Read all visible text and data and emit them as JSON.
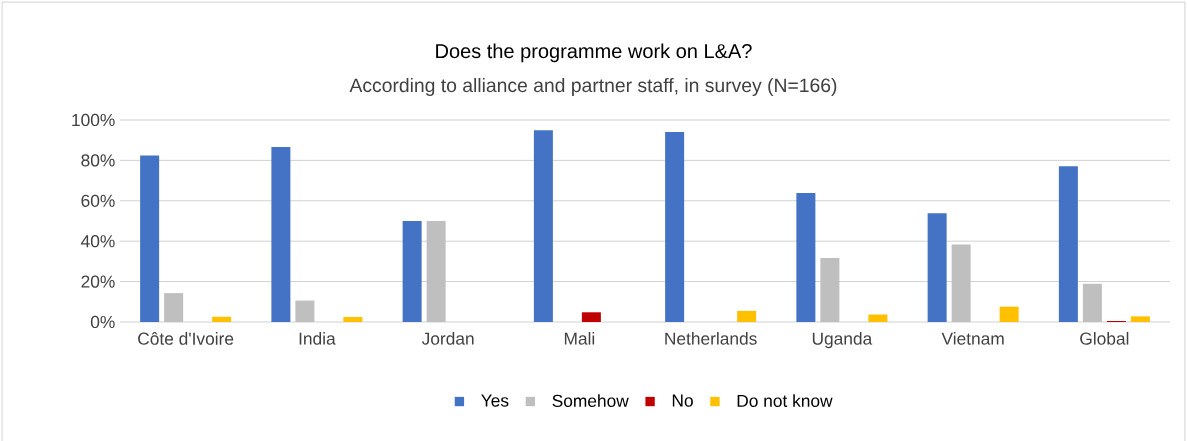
{
  "chart_data": {
    "type": "bar",
    "title": "Does the programme work on L&A?",
    "subtitle": "According to alliance and partner staff, in survey (N=166)",
    "categories": [
      "Côte d'Ivoire",
      "India",
      "Jordan",
      "Mali",
      "Netherlands",
      "Uganda",
      "Vietnam",
      "Global"
    ],
    "series": [
      {
        "name": "Yes",
        "color": "#4472c4",
        "values": [
          82.4,
          86.6,
          50,
          94.9,
          94.0,
          63.8,
          53.8,
          77.1
        ]
      },
      {
        "name": "Somehow",
        "color": "#bfbfbf",
        "values": [
          14.3,
          10.6,
          50,
          0,
          0,
          31.7,
          38.3,
          18.9
        ]
      },
      {
        "name": "No",
        "color": "#c00000",
        "values": [
          0,
          0,
          0,
          4.8,
          0,
          0,
          0,
          0.5
        ]
      },
      {
        "name": "Do not know",
        "color": "#ffc000",
        "values": [
          2.6,
          2.5,
          0,
          0,
          5.5,
          3.7,
          7.6,
          2.8
        ]
      }
    ],
    "ylim": [
      0,
      100
    ],
    "yticks": [
      {
        "value": 0,
        "label": "0%"
      },
      {
        "value": 20,
        "label": "20%"
      },
      {
        "value": 40,
        "label": "40%"
      },
      {
        "value": 60,
        "label": "60%"
      },
      {
        "value": 80,
        "label": "80%"
      },
      {
        "value": 100,
        "label": "100%"
      }
    ],
    "grid": "y",
    "legend": "bottom"
  }
}
